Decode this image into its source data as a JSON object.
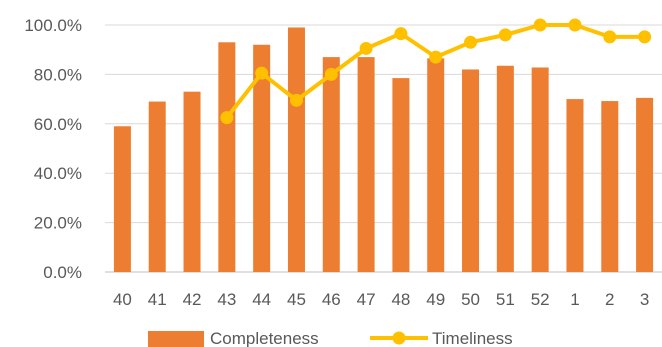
{
  "chart_data": {
    "type": "bar",
    "categories": [
      "40",
      "41",
      "42",
      "43",
      "44",
      "45",
      "46",
      "47",
      "48",
      "49",
      "50",
      "51",
      "52",
      "1",
      "2",
      "3"
    ],
    "series": [
      {
        "name": "Completeness",
        "type": "bar",
        "color": "#ED7D31",
        "values": [
          59.0,
          69.0,
          73.0,
          93.0,
          92.0,
          99.0,
          87.0,
          87.0,
          78.5,
          86.5,
          82.0,
          83.5,
          82.8,
          70.0,
          69.2,
          70.5
        ]
      },
      {
        "name": "Timeliness",
        "type": "line",
        "color": "#FFC000",
        "values": [
          null,
          null,
          null,
          62.5,
          80.5,
          69.5,
          80.0,
          90.5,
          96.5,
          87.0,
          93.0,
          96.0,
          100.0,
          100.0,
          95.2,
          95.2
        ]
      }
    ],
    "yticks": [
      "0.0%",
      "20.0%",
      "40.0%",
      "60.0%",
      "80.0%",
      "100.0%"
    ],
    "ylim": [
      0,
      100
    ],
    "grid": true,
    "legend_position": "bottom"
  }
}
